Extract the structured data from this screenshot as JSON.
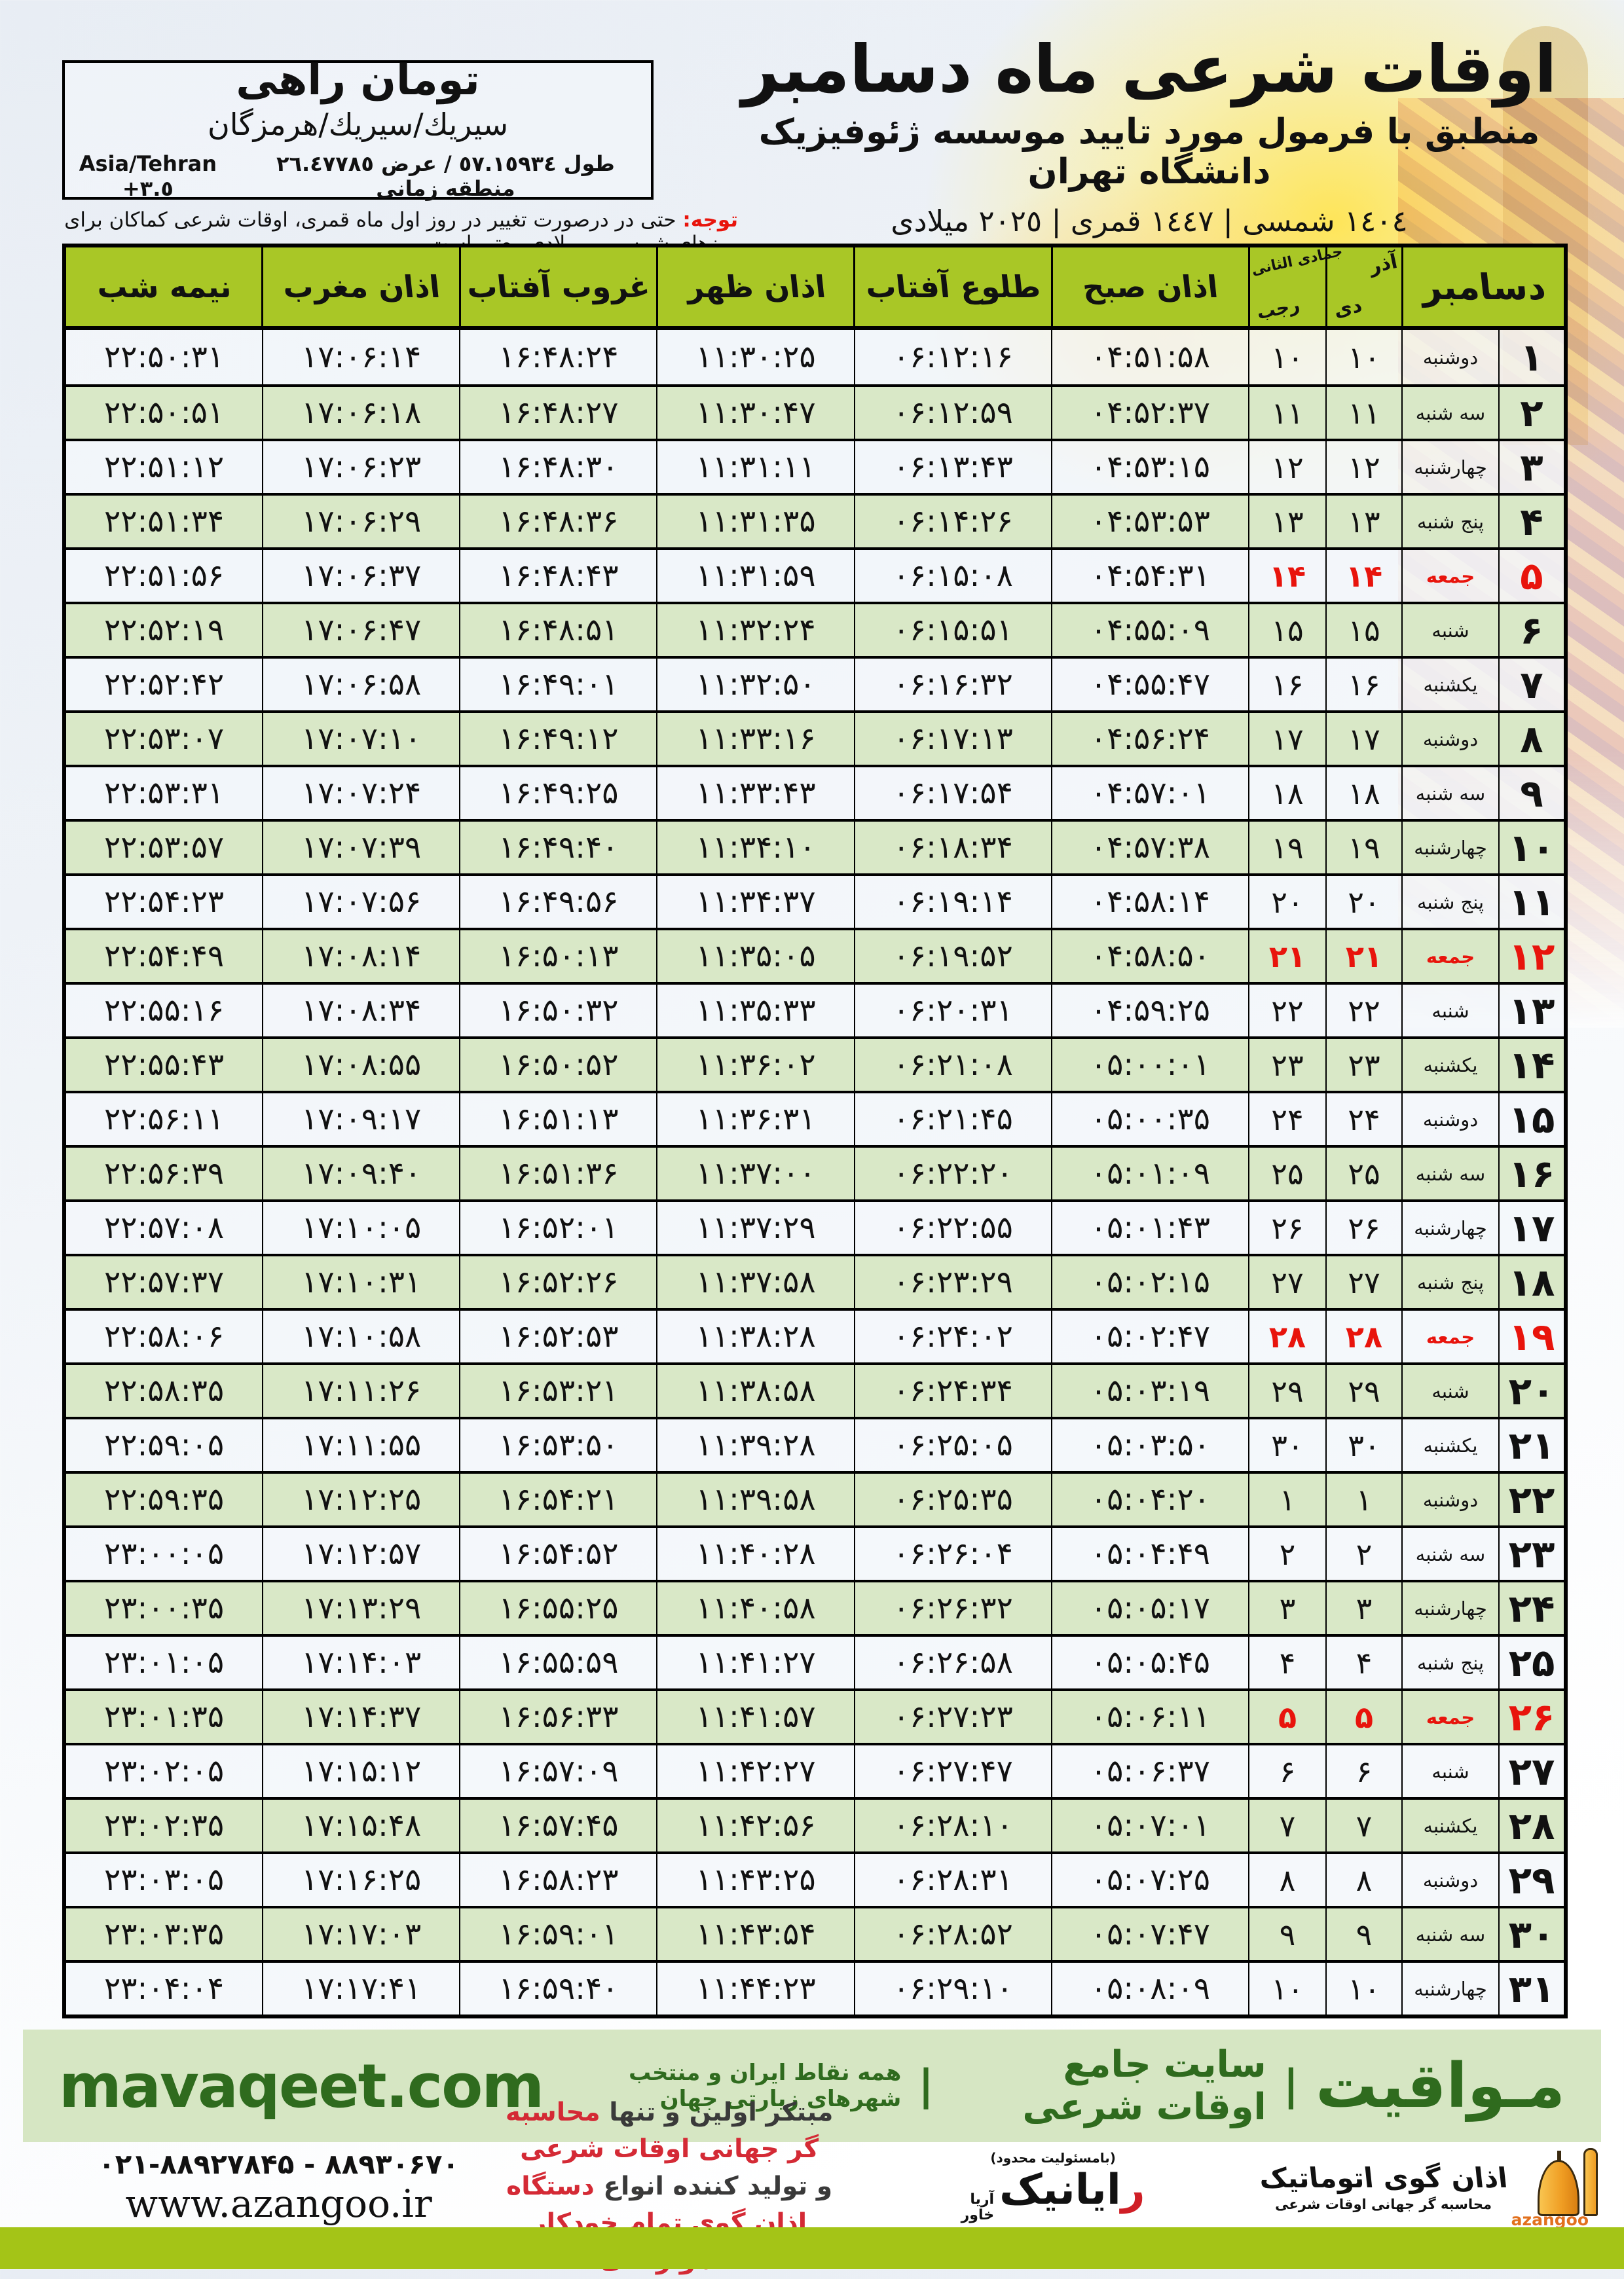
{
  "header": {
    "title": "اوقات شرعی ماه دسامبر",
    "subtitle": "منطبق با فرمول مورد تایید موسسه ژئوفیزیک دانشگاه تهران",
    "year_line": "١٤٠٤ شمسی | ١٤٤٧ قمری | ٢٠٢٥ میلادی"
  },
  "location": {
    "name": "تومان راهی",
    "region": "سيريك/سيريك/هرمزگان",
    "coords_fa": "طول ٥٧.١٥٩٣٤ / عرض ٢٦.٤٧٧٨٥ منطقه زمانی",
    "timezone": "Asia/Tehran +٣.٥"
  },
  "note": {
    "label": "توجه:",
    "text": " حتی در درصورت تغییر در روز اول ماه قمری، اوقات شرعی کماکان برای روزهای شمسی و میلادی معتبر است."
  },
  "table": {
    "headers": {
      "december": "دسامبر",
      "jalali_top": "آذر",
      "jalali_bottom": "دی",
      "hijri_top": "جمادی الثانی",
      "hijri_bottom": "رجب",
      "fajr": "اذان صبح",
      "sunrise": "طلوع آفتاب",
      "dhuhr": "اذان ظهر",
      "sunset": "غروب آفتاب",
      "maghrib": "اذان مغرب",
      "midnight": "نیمه شب"
    },
    "rows": [
      {
        "day": 1,
        "weekday": "دوشنبه",
        "jalali": 10,
        "hijri": 10,
        "fajr": "04:51:58",
        "sunrise": "06:12:16",
        "dhuhr": "11:30:25",
        "sunset": "16:48:24",
        "maghrib": "17:06:14",
        "midnight": "22:50:31",
        "friday": false
      },
      {
        "day": 2,
        "weekday": "سه شنبه",
        "jalali": 11,
        "hijri": 11,
        "fajr": "04:52:37",
        "sunrise": "06:12:59",
        "dhuhr": "11:30:47",
        "sunset": "16:48:27",
        "maghrib": "17:06:18",
        "midnight": "22:50:51",
        "friday": false
      },
      {
        "day": 3,
        "weekday": "چهارشنبه",
        "jalali": 12,
        "hijri": 12,
        "fajr": "04:53:15",
        "sunrise": "06:13:43",
        "dhuhr": "11:31:11",
        "sunset": "16:48:30",
        "maghrib": "17:06:23",
        "midnight": "22:51:12",
        "friday": false
      },
      {
        "day": 4,
        "weekday": "پنج شنبه",
        "jalali": 13,
        "hijri": 13,
        "fajr": "04:53:53",
        "sunrise": "06:14:26",
        "dhuhr": "11:31:35",
        "sunset": "16:48:36",
        "maghrib": "17:06:29",
        "midnight": "22:51:34",
        "friday": false
      },
      {
        "day": 5,
        "weekday": "جمعه",
        "jalali": 14,
        "hijri": 14,
        "fajr": "04:54:31",
        "sunrise": "06:15:08",
        "dhuhr": "11:31:59",
        "sunset": "16:48:43",
        "maghrib": "17:06:37",
        "midnight": "22:51:56",
        "friday": true
      },
      {
        "day": 6,
        "weekday": "شنبه",
        "jalali": 15,
        "hijri": 15,
        "fajr": "04:55:09",
        "sunrise": "06:15:51",
        "dhuhr": "11:32:24",
        "sunset": "16:48:51",
        "maghrib": "17:06:47",
        "midnight": "22:52:19",
        "friday": false
      },
      {
        "day": 7,
        "weekday": "یکشنبه",
        "jalali": 16,
        "hijri": 16,
        "fajr": "04:55:47",
        "sunrise": "06:16:32",
        "dhuhr": "11:32:50",
        "sunset": "16:49:01",
        "maghrib": "17:06:58",
        "midnight": "22:52:42",
        "friday": false
      },
      {
        "day": 8,
        "weekday": "دوشنبه",
        "jalali": 17,
        "hijri": 17,
        "fajr": "04:56:24",
        "sunrise": "06:17:13",
        "dhuhr": "11:33:16",
        "sunset": "16:49:12",
        "maghrib": "17:07:10",
        "midnight": "22:53:07",
        "friday": false
      },
      {
        "day": 9,
        "weekday": "سه شنبه",
        "jalali": 18,
        "hijri": 18,
        "fajr": "04:57:01",
        "sunrise": "06:17:54",
        "dhuhr": "11:33:43",
        "sunset": "16:49:25",
        "maghrib": "17:07:24",
        "midnight": "22:53:31",
        "friday": false
      },
      {
        "day": 10,
        "weekday": "چهارشنبه",
        "jalali": 19,
        "hijri": 19,
        "fajr": "04:57:38",
        "sunrise": "06:18:34",
        "dhuhr": "11:34:10",
        "sunset": "16:49:40",
        "maghrib": "17:07:39",
        "midnight": "22:53:57",
        "friday": false
      },
      {
        "day": 11,
        "weekday": "پنج شنبه",
        "jalali": 20,
        "hijri": 20,
        "fajr": "04:58:14",
        "sunrise": "06:19:14",
        "dhuhr": "11:34:37",
        "sunset": "16:49:56",
        "maghrib": "17:07:56",
        "midnight": "22:54:23",
        "friday": false
      },
      {
        "day": 12,
        "weekday": "جمعه",
        "jalali": 21,
        "hijri": 21,
        "fajr": "04:58:50",
        "sunrise": "06:19:52",
        "dhuhr": "11:35:05",
        "sunset": "16:50:13",
        "maghrib": "17:08:14",
        "midnight": "22:54:49",
        "friday": true
      },
      {
        "day": 13,
        "weekday": "شنبه",
        "jalali": 22,
        "hijri": 22,
        "fajr": "04:59:25",
        "sunrise": "06:20:31",
        "dhuhr": "11:35:33",
        "sunset": "16:50:32",
        "maghrib": "17:08:34",
        "midnight": "22:55:16",
        "friday": false
      },
      {
        "day": 14,
        "weekday": "یکشنبه",
        "jalali": 23,
        "hijri": 23,
        "fajr": "05:00:01",
        "sunrise": "06:21:08",
        "dhuhr": "11:36:02",
        "sunset": "16:50:52",
        "maghrib": "17:08:55",
        "midnight": "22:55:43",
        "friday": false
      },
      {
        "day": 15,
        "weekday": "دوشنبه",
        "jalali": 24,
        "hijri": 24,
        "fajr": "05:00:35",
        "sunrise": "06:21:45",
        "dhuhr": "11:36:31",
        "sunset": "16:51:13",
        "maghrib": "17:09:17",
        "midnight": "22:56:11",
        "friday": false
      },
      {
        "day": 16,
        "weekday": "سه شنبه",
        "jalali": 25,
        "hijri": 25,
        "fajr": "05:01:09",
        "sunrise": "06:22:20",
        "dhuhr": "11:37:00",
        "sunset": "16:51:36",
        "maghrib": "17:09:40",
        "midnight": "22:56:39",
        "friday": false
      },
      {
        "day": 17,
        "weekday": "چهارشنبه",
        "jalali": 26,
        "hijri": 26,
        "fajr": "05:01:43",
        "sunrise": "06:22:55",
        "dhuhr": "11:37:29",
        "sunset": "16:52:01",
        "maghrib": "17:10:05",
        "midnight": "22:57:08",
        "friday": false
      },
      {
        "day": 18,
        "weekday": "پنج شنبه",
        "jalali": 27,
        "hijri": 27,
        "fajr": "05:02:15",
        "sunrise": "06:23:29",
        "dhuhr": "11:37:58",
        "sunset": "16:52:26",
        "maghrib": "17:10:31",
        "midnight": "22:57:37",
        "friday": false
      },
      {
        "day": 19,
        "weekday": "جمعه",
        "jalali": 28,
        "hijri": 28,
        "fajr": "05:02:47",
        "sunrise": "06:24:02",
        "dhuhr": "11:38:28",
        "sunset": "16:52:53",
        "maghrib": "17:10:58",
        "midnight": "22:58:06",
        "friday": true
      },
      {
        "day": 20,
        "weekday": "شنبه",
        "jalali": 29,
        "hijri": 29,
        "fajr": "05:03:19",
        "sunrise": "06:24:34",
        "dhuhr": "11:38:58",
        "sunset": "16:53:21",
        "maghrib": "17:11:26",
        "midnight": "22:58:35",
        "friday": false
      },
      {
        "day": 21,
        "weekday": "یکشنبه",
        "jalali": 30,
        "hijri": 30,
        "fajr": "05:03:50",
        "sunrise": "06:25:05",
        "dhuhr": "11:39:28",
        "sunset": "16:53:50",
        "maghrib": "17:11:55",
        "midnight": "22:59:05",
        "friday": false
      },
      {
        "day": 22,
        "weekday": "دوشنبه",
        "jalali": 1,
        "hijri": 1,
        "fajr": "05:04:20",
        "sunrise": "06:25:35",
        "dhuhr": "11:39:58",
        "sunset": "16:54:21",
        "maghrib": "17:12:25",
        "midnight": "22:59:35",
        "friday": false
      },
      {
        "day": 23,
        "weekday": "سه شنبه",
        "jalali": 2,
        "hijri": 2,
        "fajr": "05:04:49",
        "sunrise": "06:26:04",
        "dhuhr": "11:40:28",
        "sunset": "16:54:52",
        "maghrib": "17:12:57",
        "midnight": "23:00:05",
        "friday": false
      },
      {
        "day": 24,
        "weekday": "چهارشنبه",
        "jalali": 3,
        "hijri": 3,
        "fajr": "05:05:17",
        "sunrise": "06:26:32",
        "dhuhr": "11:40:58",
        "sunset": "16:55:25",
        "maghrib": "17:13:29",
        "midnight": "23:00:35",
        "friday": false
      },
      {
        "day": 25,
        "weekday": "پنج شنبه",
        "jalali": 4,
        "hijri": 4,
        "fajr": "05:05:45",
        "sunrise": "06:26:58",
        "dhuhr": "11:41:27",
        "sunset": "16:55:59",
        "maghrib": "17:14:03",
        "midnight": "23:01:05",
        "friday": false
      },
      {
        "day": 26,
        "weekday": "جمعه",
        "jalali": 5,
        "hijri": 5,
        "fajr": "05:06:11",
        "sunrise": "06:27:23",
        "dhuhr": "11:41:57",
        "sunset": "16:56:33",
        "maghrib": "17:14:37",
        "midnight": "23:01:35",
        "friday": true
      },
      {
        "day": 27,
        "weekday": "شنبه",
        "jalali": 6,
        "hijri": 6,
        "fajr": "05:06:37",
        "sunrise": "06:27:47",
        "dhuhr": "11:42:27",
        "sunset": "16:57:09",
        "maghrib": "17:15:12",
        "midnight": "23:02:05",
        "friday": false
      },
      {
        "day": 28,
        "weekday": "یکشنبه",
        "jalali": 7,
        "hijri": 7,
        "fajr": "05:07:01",
        "sunrise": "06:28:10",
        "dhuhr": "11:42:56",
        "sunset": "16:57:45",
        "maghrib": "17:15:48",
        "midnight": "23:02:35",
        "friday": false
      },
      {
        "day": 29,
        "weekday": "دوشنبه",
        "jalali": 8,
        "hijri": 8,
        "fajr": "05:07:25",
        "sunrise": "06:28:31",
        "dhuhr": "11:43:25",
        "sunset": "16:58:23",
        "maghrib": "17:16:25",
        "midnight": "23:03:05",
        "friday": false
      },
      {
        "day": 30,
        "weekday": "سه شنبه",
        "jalali": 9,
        "hijri": 9,
        "fajr": "05:07:47",
        "sunrise": "06:28:52",
        "dhuhr": "11:43:54",
        "sunset": "16:59:01",
        "maghrib": "17:17:03",
        "midnight": "23:03:35",
        "friday": false
      },
      {
        "day": 31,
        "weekday": "چهارشنبه",
        "jalali": 10,
        "hijri": 10,
        "fajr": "05:08:09",
        "sunrise": "06:29:10",
        "dhuhr": "11:44:23",
        "sunset": "16:59:40",
        "maghrib": "17:17:41",
        "midnight": "23:04:04",
        "friday": false
      }
    ]
  },
  "footer": {
    "url": "mavaqeet.com",
    "brand": "مـواقیت",
    "sep": "|",
    "desc1": "سایت جامع اوقات شرعی",
    "desc2": "همه نقاط ایران و منتخب شهرهای زیارتی جهان"
  },
  "bottom": {
    "phones": "۰۲۱-۸۸۹۲۷۸۴۵ - ۸۸۹۳۰۶۷۰",
    "site": "www.azangoo.ir",
    "tag1_dark": "مبتکر اولین و تنها ",
    "tag1_red": "محاسبه گر جهانی اوقات شرعی",
    "tag2_dark": "و تولید کننده انواع ",
    "tag2_red": "دستگاه اذان گوی تمام خودکار ماهواره ای",
    "rayanik_top": "(بامسئولیت محدود)",
    "rayanik_r": "ر",
    "rayanik_rest": "ایانیک",
    "rayanik_side1": "آریا",
    "rayanik_side2": "خاور",
    "azangoo_title": "اذان گوی اتوماتیک",
    "azangoo_sub": "محاسبه گر جهانی اوقات شرعی",
    "azangoo_brand": "azangoo"
  },
  "colors": {
    "header_green": "#a9c726",
    "row_green": "#d9e8c7",
    "friday_red": "#e8140c",
    "footer_bg": "#d6e6c3",
    "footer_text": "#2f6b1e",
    "bottom_bar": "#a4c417",
    "accent_orange": "#ef9c22"
  }
}
